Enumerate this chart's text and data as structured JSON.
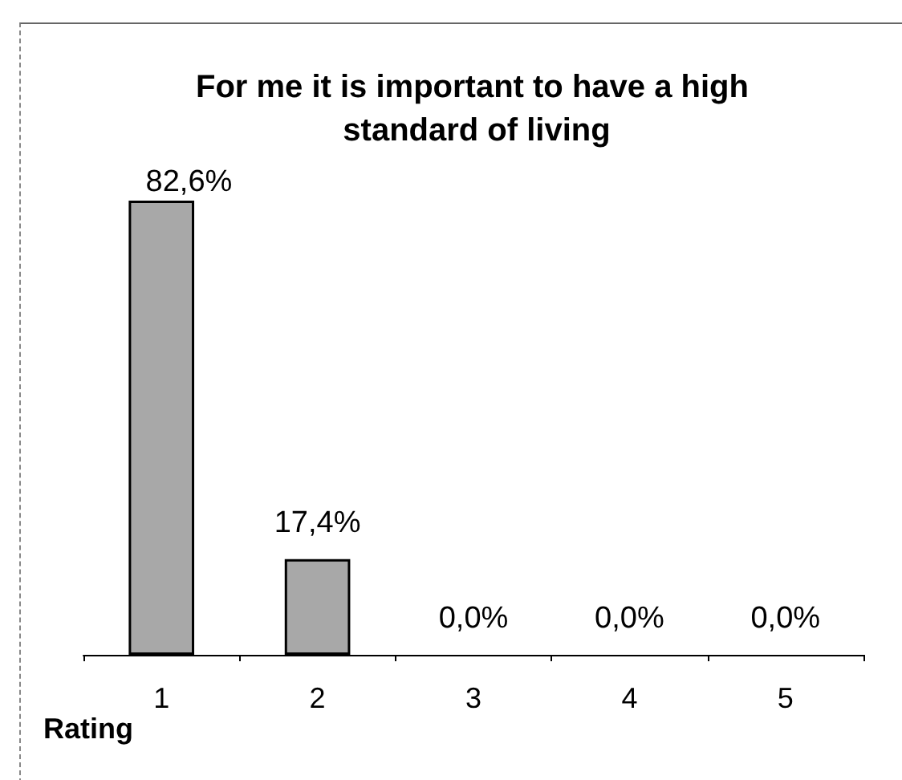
{
  "chart_data": {
    "type": "bar",
    "title": "For me it is important to have a high standard of living",
    "xlabel": "Rating",
    "categories": [
      "1",
      "2",
      "3",
      "4",
      "5"
    ],
    "values": [
      82.6,
      17.4,
      0,
      0,
      0
    ],
    "value_labels": [
      "82,6%",
      "17,4%",
      "0,0%",
      "0,0%",
      "0,0%"
    ],
    "color": "#a8a8a8"
  }
}
